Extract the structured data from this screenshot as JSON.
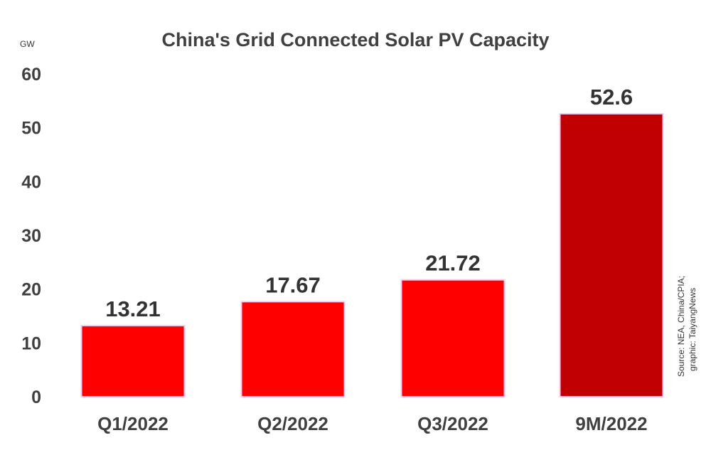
{
  "chart_data": {
    "type": "bar",
    "title": "China's Grid Connected Solar PV Capacity",
    "ylabel": "GW",
    "xlabel": "",
    "categories": [
      "Q1/2022",
      "Q2/2022",
      "Q3/2022",
      "9M/2022"
    ],
    "values": [
      13.21,
      17.67,
      21.72,
      52.6
    ],
    "data_labels": [
      "13.21",
      "17.67",
      "21.72",
      "52.6"
    ],
    "ylim": [
      0,
      60
    ],
    "yticks": [
      0,
      10,
      20,
      30,
      40,
      50,
      60
    ],
    "grid": false,
    "bar_colors": [
      "#ff0000",
      "#ff0000",
      "#ff0000",
      "#c00000"
    ],
    "bar_outline_color": "#f6c8f0"
  },
  "source_lines": [
    "Source: NEA, China/CPIA;",
    "graphic: TaiyangNews"
  ]
}
